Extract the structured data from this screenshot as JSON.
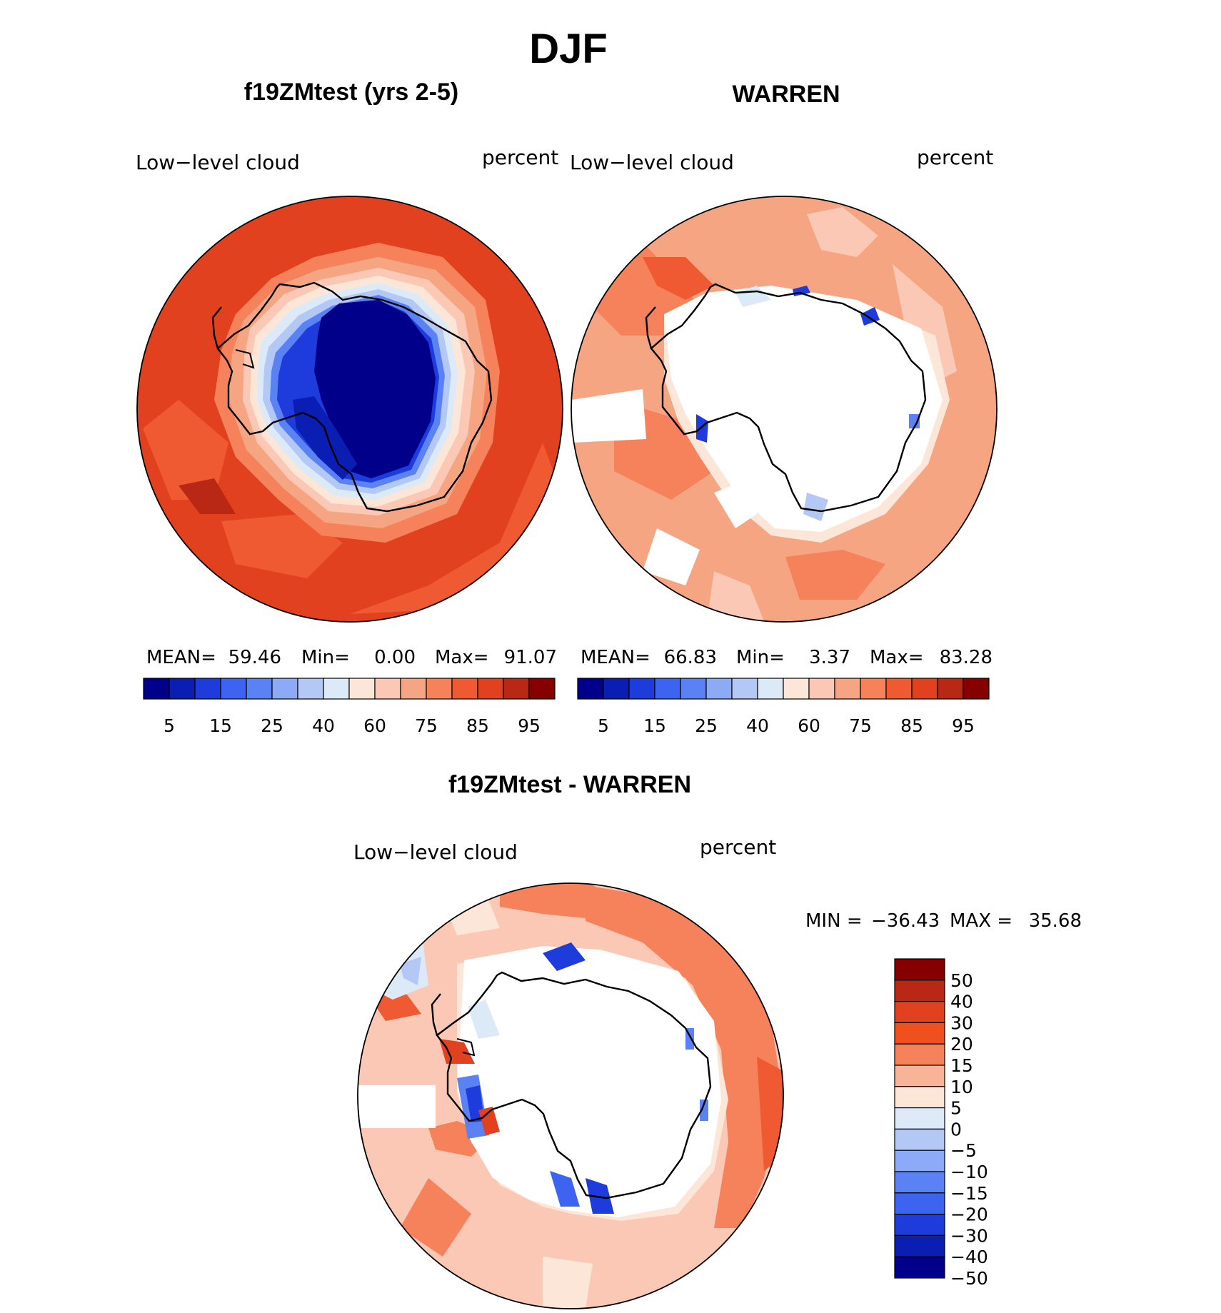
{
  "season_title": "DJF",
  "variable_label": "Low−level cloud",
  "units_label": "percent",
  "panels": [
    {
      "title": "f19ZMtest (yrs 2-5)",
      "stats": {
        "mean_label": "MEAN=",
        "mean": "59.46",
        "min_label": "Min=",
        "min": "0.00",
        "max_label": "Max=",
        "max": "91.07"
      }
    },
    {
      "title": "WARREN",
      "stats": {
        "mean_label": "MEAN=",
        "mean": "66.83",
        "min_label": "Min=",
        "min": "3.37",
        "max_label": "Max=",
        "max": "83.28"
      }
    }
  ],
  "abs_colorbar": {
    "colors": [
      "#00008b",
      "#0a1eb4",
      "#1e3cdc",
      "#3c64f0",
      "#5a82f5",
      "#8caaf5",
      "#b4c8f5",
      "#dceaf8",
      "#fbe6d8",
      "#fac8b4",
      "#f5a582",
      "#f5825a",
      "#f05a32",
      "#e1411e",
      "#b92814",
      "#870000"
    ],
    "labels": [
      "5",
      "15",
      "25",
      "40",
      "60",
      "75",
      "85",
      "95"
    ]
  },
  "diff_panel": {
    "title": "f19ZMtest - WARREN",
    "min_label": "MIN =",
    "min": "−36.43",
    "max_label": "MAX =",
    "max": "35.68"
  },
  "diff_colorbar": {
    "colors": [
      "#870000",
      "#b92814",
      "#e1411e",
      "#f0501e",
      "#f5825a",
      "#f8b496",
      "#fbe6d8",
      "#dceaf8",
      "#b4c8f5",
      "#8caaf5",
      "#5a82f5",
      "#3c64f0",
      "#1e3cdc",
      "#0a1eb4",
      "#00008b"
    ],
    "labels": [
      "50",
      "40",
      "30",
      "20",
      "15",
      "10",
      "5",
      "0",
      "−5",
      "−10",
      "−15",
      "−20",
      "−30",
      "−40",
      "−50"
    ]
  }
}
